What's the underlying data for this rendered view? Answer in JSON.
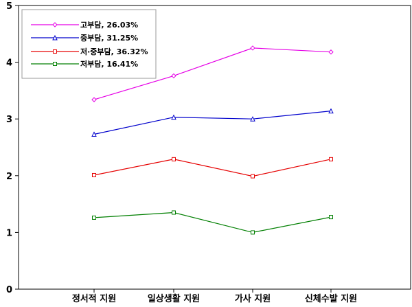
{
  "chart_data": {
    "type": "line",
    "categories": [
      "정서적 지원",
      "일상생활 지원",
      "가사 지원",
      "신체수발 지원"
    ],
    "ylim": [
      0,
      5
    ],
    "yticks": [
      0,
      1,
      2,
      3,
      4,
      5
    ],
    "grid": false,
    "legend_position": "top-left",
    "series": [
      {
        "name": "고부담, 26.03%",
        "color": "#e600e6",
        "marker": "diamond",
        "values": [
          3.34,
          3.76,
          4.25,
          4.18
        ]
      },
      {
        "name": "중부담, 31.25%",
        "color": "#0000cc",
        "marker": "triangle",
        "values": [
          2.73,
          3.03,
          3.0,
          3.14
        ]
      },
      {
        "name": "저·중부담, 36.32%",
        "color": "#e60000",
        "marker": "square",
        "values": [
          2.01,
          2.29,
          1.99,
          2.29
        ]
      },
      {
        "name": "저부담, 16.41%",
        "color": "#007f00",
        "marker": "square",
        "values": [
          1.26,
          1.35,
          1.0,
          1.27
        ]
      }
    ]
  }
}
